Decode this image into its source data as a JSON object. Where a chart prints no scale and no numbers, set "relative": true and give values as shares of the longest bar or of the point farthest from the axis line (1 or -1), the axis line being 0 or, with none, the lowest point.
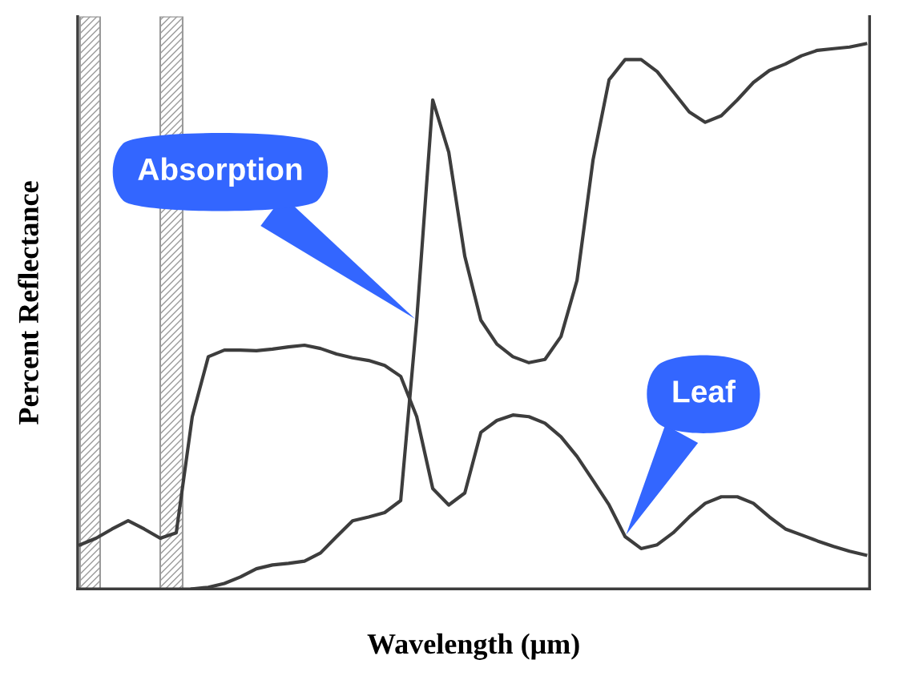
{
  "chart_data": {
    "type": "line",
    "relative": true,
    "xlabel": "Wavelength (μm)",
    "ylabel": "Percent Reflectance",
    "marker": "none",
    "line_style": "solid",
    "annotations": [
      "Absorption",
      "Leaf"
    ],
    "categories": [
      null,
      null,
      null,
      null,
      null,
      null,
      null,
      null,
      null,
      null,
      null,
      null,
      null,
      null,
      null,
      null,
      null,
      null,
      null,
      null,
      null,
      null,
      null,
      null,
      null,
      null,
      null,
      null,
      null,
      null,
      null,
      null,
      null,
      null,
      null,
      null,
      null,
      null,
      null,
      null,
      null,
      null,
      null,
      null,
      null,
      null,
      null,
      null,
      null,
      null
    ],
    "series": [
      {
        "color": "#3d3d3d",
        "values": [
          null,
          null,
          null,
          null,
          null,
          null,
          null,
          0,
          0.003,
          0.01,
          0.022,
          0.037,
          0.044,
          0.047,
          0.051,
          0.066,
          0.096,
          0.125,
          0.132,
          0.14,
          0.162,
          0.493,
          0.897,
          0.801,
          0.61,
          0.493,
          0.449,
          0.426,
          0.415,
          0.421,
          0.463,
          0.566,
          0.787,
          0.934,
          0.971,
          0.971,
          0.949,
          0.912,
          0.875,
          0.856,
          0.868,
          0.897,
          0.929,
          0.951,
          0.963,
          0.978,
          0.988,
          0.991,
          0.994,
          1
        ]
      },
      {
        "color": "#3d3d3d",
        "values": [
          0.081,
          0.093,
          0.11,
          0.125,
          0.11,
          0.093,
          0.103,
          0.316,
          0.426,
          0.438,
          0.438,
          0.437,
          0.44,
          0.444,
          0.447,
          0.441,
          0.431,
          0.424,
          0.419,
          0.41,
          0.39,
          0.316,
          0.184,
          0.154,
          0.176,
          0.287,
          0.309,
          0.319,
          0.316,
          0.304,
          0.279,
          0.243,
          0.199,
          0.154,
          0.096,
          0.074,
          0.081,
          0.103,
          0.132,
          0.157,
          0.169,
          0.169,
          0.157,
          0.132,
          0.11,
          0.099,
          0.088,
          0.078,
          0.069,
          0.062
        ]
      }
    ]
  }
}
